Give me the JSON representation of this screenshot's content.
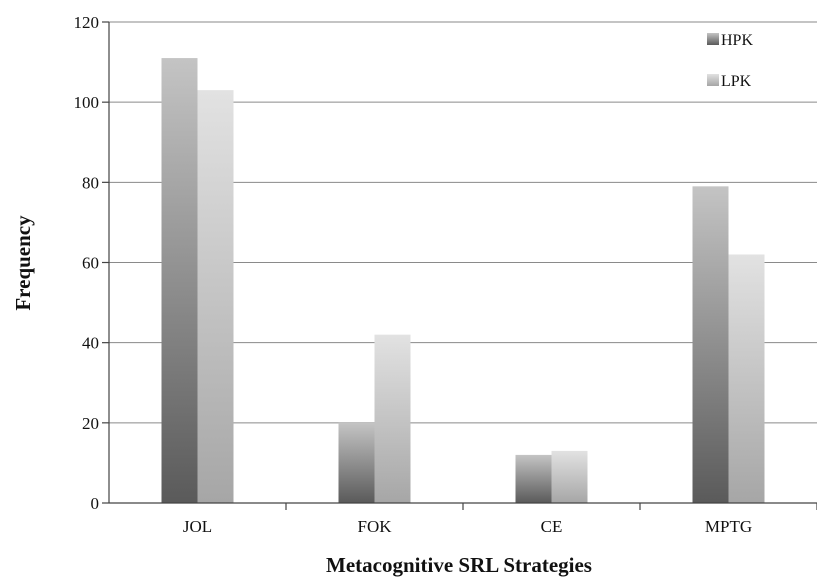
{
  "chart_data": {
    "type": "bar",
    "categories": [
      "JOL",
      "FOK",
      "CE",
      "MPTG"
    ],
    "series": [
      {
        "name": "HPK",
        "values": [
          111,
          20,
          12,
          79
        ],
        "color_top": "#c4c4c4",
        "color_bottom": "#5a5a5a"
      },
      {
        "name": "LPK",
        "values": [
          103,
          42,
          13,
          62
        ],
        "color_top": "#e2e2e2",
        "color_bottom": "#a6a6a6"
      }
    ],
    "title": "",
    "xlabel": "Metacognitive SRL Strategies",
    "ylabel": "Frequency",
    "ylim": [
      0,
      120
    ],
    "yticks": [
      0,
      20,
      40,
      60,
      80,
      100,
      120
    ],
    "grid": true,
    "legend_position": "top-right"
  }
}
